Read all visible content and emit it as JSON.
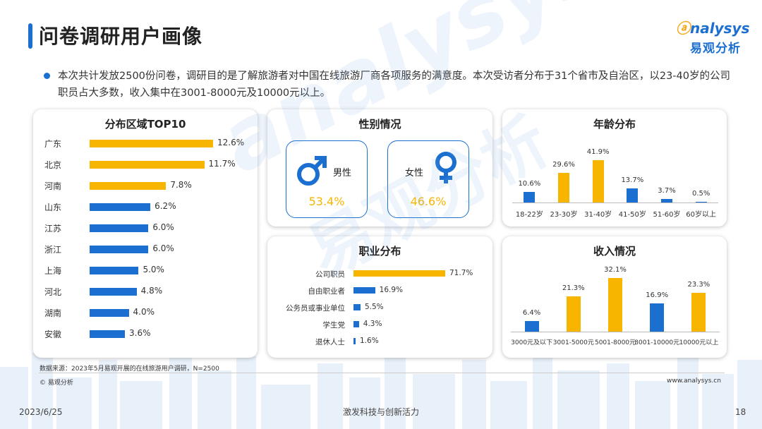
{
  "page": {
    "title": "问卷调研用户画像",
    "description": "本次共计发放2500份问卷，调研目的是了解旅游者对中国在线旅游厂商各项服务的满意度。本次受访者分布于31个省市及自治区，以23-40岁的公司职员占大多数，收入集中在3001-8000元及10000元以上。",
    "source": "数据来源：2023年5月易观开展的在线旅游用户调研，N=2500",
    "copyright": "© 易观分析",
    "website": "www.analysys.cn",
    "date": "2023/6/25",
    "slogan": "激发科技与创新活力",
    "page_number": "18"
  },
  "logo": {
    "en_prefix": "",
    "en_rest": "nalysys",
    "cn": "易观分析"
  },
  "watermark": {
    "en": "analysys",
    "cn": "易观分析"
  },
  "colors": {
    "blue": "#1a6fd0",
    "gold": "#f7b500"
  },
  "chart_data": [
    {
      "type": "bar",
      "orientation": "horizontal",
      "title": "分布区域TOP10",
      "categories": [
        "广东",
        "北京",
        "河南",
        "山东",
        "江苏",
        "浙江",
        "上海",
        "河北",
        "湖南",
        "安徽"
      ],
      "values": [
        12.6,
        11.7,
        7.8,
        6.2,
        6.0,
        6.0,
        5.0,
        4.8,
        4.0,
        3.6
      ],
      "labels": [
        "12.6%",
        "11.7%",
        "7.8%",
        "6.2%",
        "6.0%",
        "6.0%",
        "5.0%",
        "4.8%",
        "4.0%",
        "3.6%"
      ],
      "highlight": [
        true,
        true,
        true,
        false,
        false,
        false,
        false,
        false,
        false,
        false
      ]
    },
    {
      "type": "pie",
      "title": "性别情况",
      "categories": [
        "男性",
        "女性"
      ],
      "values": [
        53.4,
        46.6
      ],
      "labels": [
        "53.4%",
        "46.6%"
      ]
    },
    {
      "type": "bar",
      "title": "年龄分布",
      "categories": [
        "18-22岁",
        "23-30岁",
        "31-40岁",
        "41-50岁",
        "51-60岁",
        "60岁以上"
      ],
      "values": [
        10.6,
        29.6,
        41.9,
        13.7,
        3.7,
        0.5
      ],
      "labels": [
        "10.6%",
        "29.6%",
        "41.9%",
        "13.7%",
        "3.7%",
        "0.5%"
      ],
      "highlight": [
        false,
        true,
        true,
        false,
        false,
        false
      ]
    },
    {
      "type": "bar",
      "orientation": "horizontal",
      "title": "职业分布",
      "categories": [
        "公司职员",
        "自由职业者",
        "公务员或事业单位",
        "学生党",
        "退休人士"
      ],
      "values": [
        71.7,
        16.9,
        5.5,
        4.3,
        1.6
      ],
      "labels": [
        "71.7%",
        "16.9%",
        "5.5%",
        "4.3%",
        "1.6%"
      ],
      "highlight": [
        true,
        false,
        false,
        false,
        false
      ]
    },
    {
      "type": "bar",
      "title": "收入情况",
      "categories": [
        "3000元及以下",
        "3001-5000元",
        "5001-8000元",
        "8001-10000元",
        "10000元以上"
      ],
      "values": [
        6.4,
        21.3,
        32.1,
        16.9,
        23.3
      ],
      "labels": [
        "6.4%",
        "21.3%",
        "32.1%",
        "16.9%",
        "23.3%"
      ],
      "highlight": [
        false,
        true,
        true,
        false,
        true
      ]
    }
  ]
}
